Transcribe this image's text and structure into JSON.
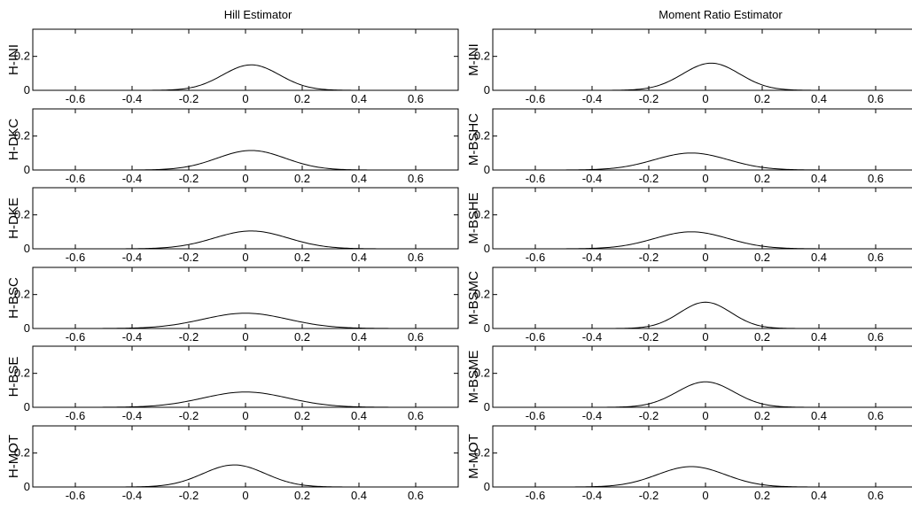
{
  "figure": {
    "column_titles": [
      "Hill Estimator",
      "Moment Ratio Estimator"
    ]
  },
  "chart_data": [
    {
      "type": "line",
      "column": 0,
      "row": 0,
      "ylabel": "H-INI",
      "xlim": [
        -0.75,
        0.75
      ],
      "ylim": [
        0,
        0.36
      ],
      "xticks": [
        -0.6,
        -0.4,
        -0.2,
        0,
        0.2,
        0.4,
        0.6
      ],
      "xticklabels": [
        "-0.6",
        "-0.4",
        "-0.2",
        "0",
        "0.2",
        "0.4",
        "0.6"
      ],
      "yticks": [
        0,
        0.2
      ],
      "yticklabels": [
        "0",
        "0.2"
      ],
      "series": [
        {
          "peak_x": 0.02,
          "peak_y": 0.15,
          "sigma": 0.1
        }
      ]
    },
    {
      "type": "line",
      "column": 0,
      "row": 1,
      "ylabel": "H-DKC",
      "xlim": [
        -0.75,
        0.75
      ],
      "ylim": [
        0,
        0.36
      ],
      "xticks": [
        -0.6,
        -0.4,
        -0.2,
        0,
        0.2,
        0.4,
        0.6
      ],
      "xticklabels": [
        "-0.6",
        "-0.4",
        "-0.2",
        "0",
        "0.2",
        "0.4",
        "0.6"
      ],
      "yticks": [
        0,
        0.2
      ],
      "yticklabels": [
        "0",
        "0.2"
      ],
      "series": [
        {
          "peak_x": 0.02,
          "peak_y": 0.115,
          "sigma": 0.12
        }
      ]
    },
    {
      "type": "line",
      "column": 0,
      "row": 2,
      "ylabel": "H-DKE",
      "xlim": [
        -0.75,
        0.75
      ],
      "ylim": [
        0,
        0.36
      ],
      "xticks": [
        -0.6,
        -0.4,
        -0.2,
        0,
        0.2,
        0.4,
        0.6
      ],
      "xticklabels": [
        "-0.6",
        "-0.4",
        "-0.2",
        "0",
        "0.2",
        "0.4",
        "0.6"
      ],
      "yticks": [
        0,
        0.2
      ],
      "yticklabels": [
        "0",
        "0.2"
      ],
      "series": [
        {
          "peak_x": 0.02,
          "peak_y": 0.105,
          "sigma": 0.13
        }
      ]
    },
    {
      "type": "line",
      "column": 0,
      "row": 3,
      "ylabel": "H-BSC",
      "xlim": [
        -0.75,
        0.75
      ],
      "ylim": [
        0,
        0.36
      ],
      "xticks": [
        -0.6,
        -0.4,
        -0.2,
        0,
        0.2,
        0.4,
        0.6
      ],
      "xticklabels": [
        "-0.6",
        "-0.4",
        "-0.2",
        "0",
        "0.2",
        "0.4",
        "0.6"
      ],
      "yticks": [
        0,
        0.2
      ],
      "yticklabels": [
        "0",
        "0.2"
      ],
      "series": [
        {
          "peak_x": 0.0,
          "peak_y": 0.09,
          "sigma": 0.15
        }
      ]
    },
    {
      "type": "line",
      "column": 0,
      "row": 4,
      "ylabel": "H-BSE",
      "xlim": [
        -0.75,
        0.75
      ],
      "ylim": [
        0,
        0.36
      ],
      "xticks": [
        -0.6,
        -0.4,
        -0.2,
        0,
        0.2,
        0.4,
        0.6
      ],
      "xticklabels": [
        "-0.6",
        "-0.4",
        "-0.2",
        "0",
        "0.2",
        "0.4",
        "0.6"
      ],
      "yticks": [
        0,
        0.2
      ],
      "yticklabels": [
        "0",
        "0.2"
      ],
      "series": [
        {
          "peak_x": 0.0,
          "peak_y": 0.09,
          "sigma": 0.15
        }
      ]
    },
    {
      "type": "line",
      "column": 0,
      "row": 5,
      "ylabel": "H-MOT",
      "xlim": [
        -0.75,
        0.75
      ],
      "ylim": [
        0,
        0.36
      ],
      "xticks": [
        -0.6,
        -0.4,
        -0.2,
        0,
        0.2,
        0.4,
        0.6
      ],
      "xticklabels": [
        "-0.6",
        "-0.4",
        "-0.2",
        "0",
        "0.2",
        "0.4",
        "0.6"
      ],
      "yticks": [
        0,
        0.2
      ],
      "yticklabels": [
        "0",
        "0.2"
      ],
      "series": [
        {
          "peak_x": -0.04,
          "peak_y": 0.13,
          "sigma": 0.11
        }
      ]
    },
    {
      "type": "line",
      "column": 1,
      "row": 0,
      "ylabel": "M-INI",
      "xlim": [
        -0.75,
        0.75
      ],
      "ylim": [
        0,
        0.36
      ],
      "xticks": [
        -0.6,
        -0.4,
        -0.2,
        0,
        0.2,
        0.4,
        0.6
      ],
      "xticklabels": [
        "-0.6",
        "-0.4",
        "-0.2",
        "0",
        "0.2",
        "0.4",
        "0.6"
      ],
      "yticks": [
        0,
        0.2
      ],
      "yticklabels": [
        "0",
        "0.2"
      ],
      "series": [
        {
          "peak_x": 0.02,
          "peak_y": 0.16,
          "sigma": 0.1
        }
      ]
    },
    {
      "type": "line",
      "column": 1,
      "row": 1,
      "ylabel": "M-BSHC",
      "xlim": [
        -0.75,
        0.75
      ],
      "ylim": [
        0,
        0.36
      ],
      "xticks": [
        -0.6,
        -0.4,
        -0.2,
        0,
        0.2,
        0.4,
        0.6
      ],
      "xticklabels": [
        "-0.6",
        "-0.4",
        "-0.2",
        "0",
        "0.2",
        "0.4",
        "0.6"
      ],
      "yticks": [
        0,
        0.2
      ],
      "yticklabels": [
        "0",
        "0.2"
      ],
      "series": [
        {
          "peak_x": -0.05,
          "peak_y": 0.1,
          "sigma": 0.13
        }
      ]
    },
    {
      "type": "line",
      "column": 1,
      "row": 2,
      "ylabel": "M-BSHE",
      "xlim": [
        -0.75,
        0.75
      ],
      "ylim": [
        0,
        0.36
      ],
      "xticks": [
        -0.6,
        -0.4,
        -0.2,
        0,
        0.2,
        0.4,
        0.6
      ],
      "xticklabels": [
        "-0.6",
        "-0.4",
        "-0.2",
        "0",
        "0.2",
        "0.4",
        "0.6"
      ],
      "yticks": [
        0,
        0.2
      ],
      "yticklabels": [
        "0",
        "0.2"
      ],
      "series": [
        {
          "peak_x": -0.05,
          "peak_y": 0.1,
          "sigma": 0.13
        }
      ]
    },
    {
      "type": "line",
      "column": 1,
      "row": 3,
      "ylabel": "M-BSMC",
      "xlim": [
        -0.75,
        0.75
      ],
      "ylim": [
        0,
        0.36
      ],
      "xticks": [
        -0.6,
        -0.4,
        -0.2,
        0,
        0.2,
        0.4,
        0.6
      ],
      "xticklabels": [
        "-0.6",
        "-0.4",
        "-0.2",
        "0",
        "0.2",
        "0.4",
        "0.6"
      ],
      "yticks": [
        0,
        0.2
      ],
      "yticklabels": [
        "0",
        "0.2"
      ],
      "series": [
        {
          "peak_x": 0.0,
          "peak_y": 0.155,
          "sigma": 0.09
        }
      ]
    },
    {
      "type": "line",
      "column": 1,
      "row": 4,
      "ylabel": "M-BSME",
      "xlim": [
        -0.75,
        0.75
      ],
      "ylim": [
        0,
        0.36
      ],
      "xticks": [
        -0.6,
        -0.4,
        -0.2,
        0,
        0.2,
        0.4,
        0.6
      ],
      "xticklabels": [
        "-0.6",
        "-0.4",
        "-0.2",
        "0",
        "0.2",
        "0.4",
        "0.6"
      ],
      "yticks": [
        0,
        0.2
      ],
      "yticklabels": [
        "0",
        "0.2"
      ],
      "series": [
        {
          "peak_x": 0.0,
          "peak_y": 0.15,
          "sigma": 0.1
        }
      ]
    },
    {
      "type": "line",
      "column": 1,
      "row": 5,
      "ylabel": "M-MOT",
      "xlim": [
        -0.75,
        0.75
      ],
      "ylim": [
        0,
        0.36
      ],
      "xticks": [
        -0.6,
        -0.4,
        -0.2,
        0,
        0.2,
        0.4,
        0.6
      ],
      "xticklabels": [
        "-0.6",
        "-0.4",
        "-0.2",
        "0",
        "0.2",
        "0.4",
        "0.6"
      ],
      "yticks": [
        0,
        0.2
      ],
      "yticklabels": [
        "0",
        "0.2"
      ],
      "series": [
        {
          "peak_x": -0.05,
          "peak_y": 0.12,
          "sigma": 0.12
        }
      ]
    }
  ]
}
